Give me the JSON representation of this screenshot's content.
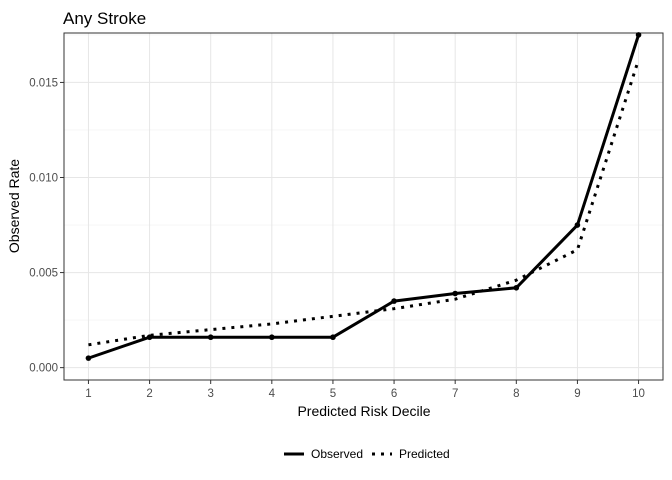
{
  "chart_data": {
    "type": "line",
    "title": "Any Stroke",
    "xlabel": "Predicted Risk Decile",
    "ylabel": "Observed Rate",
    "x": [
      1,
      2,
      3,
      4,
      5,
      6,
      7,
      8,
      9,
      10
    ],
    "x_ticks": [
      "1",
      "2",
      "3",
      "4",
      "5",
      "6",
      "7",
      "8",
      "9",
      "10"
    ],
    "y_ticks": [
      0.0,
      0.005,
      0.01,
      0.015
    ],
    "y_tick_labels": [
      "0.000",
      "0.005",
      "0.010",
      "0.015"
    ],
    "xlim": [
      0.6,
      10.4
    ],
    "ylim": [
      -0.00065,
      0.0176
    ],
    "grid": true,
    "legend_position": "bottom",
    "series": [
      {
        "name": "Observed",
        "line_style": "solid",
        "markers": true,
        "color": "#000000",
        "values": [
          0.0005,
          0.0016,
          0.0016,
          0.0016,
          0.0016,
          0.0035,
          0.0039,
          0.0042,
          0.0075,
          0.0175
        ]
      },
      {
        "name": "Predicted",
        "line_style": "dotted",
        "markers": false,
        "color": "#000000",
        "values": [
          0.0012,
          0.0017,
          0.002,
          0.0023,
          0.0027,
          0.0031,
          0.0036,
          0.0046,
          0.0062,
          0.0162
        ]
      }
    ]
  }
}
